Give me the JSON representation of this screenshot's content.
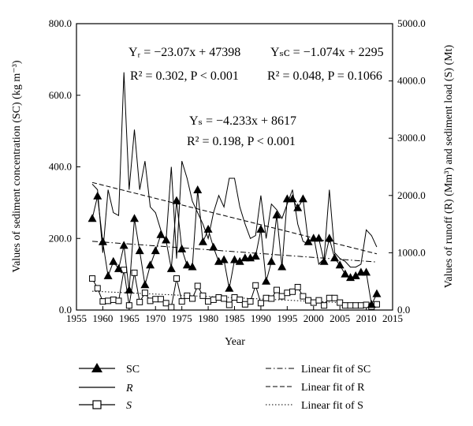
{
  "chart_data": {
    "type": "line",
    "xlabel": "Year",
    "ylabel_left": "Values of sediment concentration (SC) (kg m⁻³)",
    "ylabel_right": "Values of runoff (R) (Mm³) and sediment load (S) (Mt)",
    "xlim": [
      1955,
      2015
    ],
    "ylim_left": [
      0,
      800
    ],
    "ylim_right": [
      0,
      5000
    ],
    "x_ticks": [
      "1955",
      "1960",
      "1965",
      "1970",
      "1975",
      "1980",
      "1985",
      "1990",
      "1995",
      "2000",
      "2005",
      "2010",
      "2015"
    ],
    "y_left_ticks": [
      "0.0",
      "200.0",
      "400.0",
      "600.0",
      "800.0"
    ],
    "y_right_ticks": [
      "0.0",
      "1000.0",
      "2000.0",
      "3000.0",
      "4000.0",
      "5000.0"
    ],
    "grid": false,
    "legend_position": "bottom",
    "x": [
      1958,
      1959,
      1960,
      1961,
      1962,
      1963,
      1964,
      1965,
      1966,
      1967,
      1968,
      1969,
      1970,
      1971,
      1972,
      1973,
      1974,
      1975,
      1976,
      1977,
      1978,
      1979,
      1980,
      1981,
      1982,
      1983,
      1984,
      1985,
      1986,
      1987,
      1988,
      1989,
      1990,
      1991,
      1992,
      1993,
      1994,
      1995,
      1996,
      1997,
      1998,
      1999,
      2000,
      2001,
      2002,
      2003,
      2004,
      2005,
      2006,
      2007,
      2008,
      2009,
      2010,
      2011,
      2012
    ],
    "series": [
      {
        "name": "SC",
        "axis": "left",
        "marker": "triangle",
        "values": [
          255,
          318,
          190,
          95,
          135,
          115,
          180,
          55,
          255,
          165,
          70,
          125,
          165,
          210,
          195,
          115,
          305,
          170,
          125,
          120,
          335,
          190,
          225,
          175,
          135,
          140,
          60,
          140,
          135,
          145,
          145,
          150,
          225,
          80,
          135,
          265,
          120,
          310,
          310,
          285,
          310,
          190,
          200,
          200,
          135,
          200,
          145,
          125,
          100,
          90,
          95,
          105,
          105,
          15,
          45
        ]
      },
      {
        "name": "R",
        "axis": "right",
        "style": "solid",
        "values": [
          2200,
          2100,
          1000,
          2100,
          1700,
          1650,
          4150,
          2100,
          3150,
          2100,
          2600,
          1800,
          1700,
          1400,
          1200,
          2500,
          900,
          2600,
          2300,
          1900,
          1700,
          1500,
          1250,
          1700,
          2000,
          1800,
          2300,
          2300,
          1800,
          1500,
          1250,
          1300,
          2000,
          1250,
          1850,
          1750,
          1600,
          1850,
          2100,
          1500,
          1200,
          1150,
          1300,
          800,
          900,
          2100,
          1000,
          900,
          850,
          750,
          750,
          800,
          1400,
          1300,
          1100
        ]
      },
      {
        "name": "S",
        "axis": "right",
        "marker": "square",
        "values": [
          550,
          380,
          150,
          160,
          180,
          160,
          700,
          80,
          650,
          140,
          300,
          160,
          190,
          190,
          120,
          50,
          550,
          150,
          250,
          200,
          420,
          250,
          150,
          180,
          220,
          200,
          90,
          220,
          180,
          100,
          150,
          430,
          120,
          210,
          200,
          350,
          240,
          300,
          320,
          400,
          240,
          170,
          130,
          170,
          80,
          210,
          210,
          130,
          80,
          80,
          80,
          80,
          90,
          60,
          100
        ]
      }
    ],
    "fits": [
      {
        "name": "Linear fit of SC",
        "axis": "left",
        "style": "dash-dot",
        "slope": -1.074,
        "intercept": 2295
      },
      {
        "name": "Linear fit of R",
        "axis": "right",
        "style": "dashed",
        "slope": -23.07,
        "intercept": 47398
      },
      {
        "name": "Linear fit of S",
        "axis": "right",
        "style": "dotted",
        "slope": -4.233,
        "intercept": 8617
      }
    ],
    "annotations": {
      "eq_r": "Yᵣ = −23.07x + 47398",
      "stat_r": "R² = 0.302, P < 0.001",
      "eq_sc": "Yₛᴄ = −1.074x + 2295",
      "stat_sc": "R² = 0.048, P = 0.1066",
      "eq_s": "Yₛ = −4.233x + 8617",
      "stat_s": "R² = 0.198, P < 0.001"
    },
    "legend": {
      "sc": "SC",
      "r": "R",
      "s": "S",
      "fit_sc": "Linear fit of SC",
      "fit_r": "Linear fit of R",
      "fit_s": "Linear fit of S"
    }
  }
}
